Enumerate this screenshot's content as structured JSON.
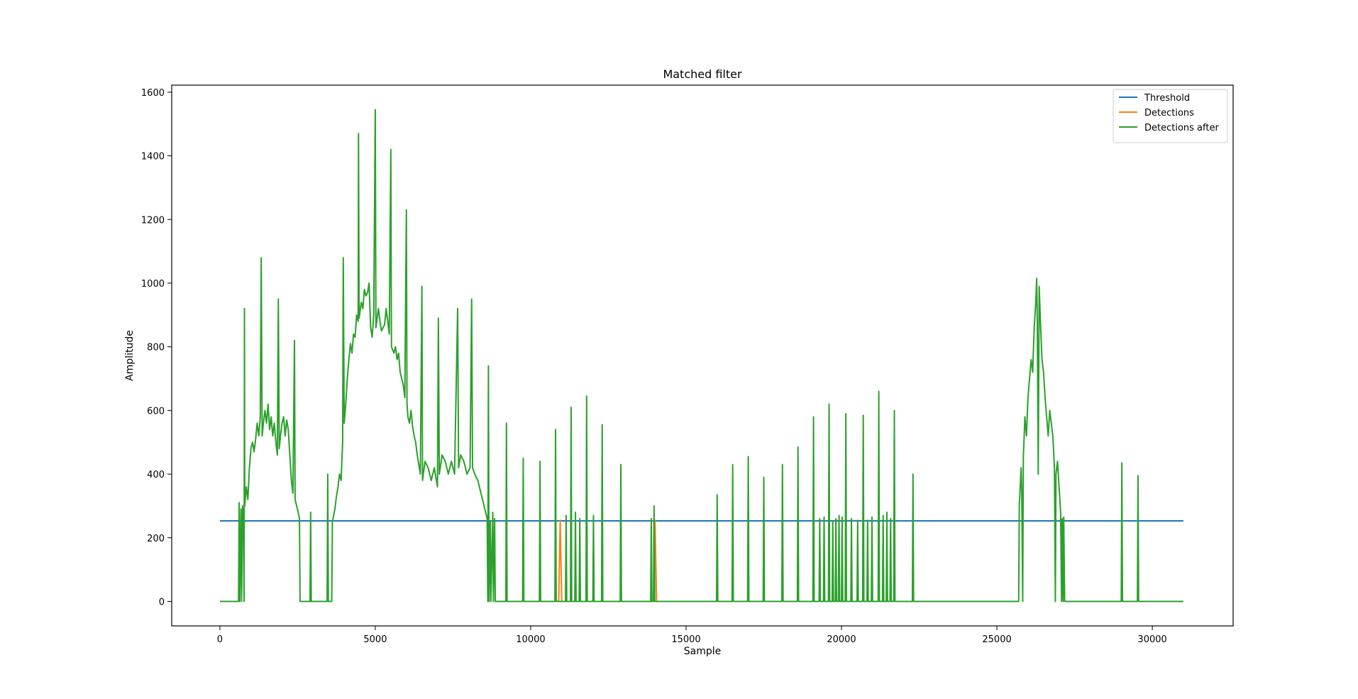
{
  "chart_data": {
    "type": "line",
    "title": "Matched filter",
    "xlabel": "Sample",
    "ylabel": "Amplitude",
    "xlim": [
      -1550,
      32600
    ],
    "ylim": [
      -77,
      1622
    ],
    "x_ticks": [
      0,
      5000,
      10000,
      15000,
      20000,
      25000,
      30000
    ],
    "y_ticks": [
      0,
      200,
      400,
      600,
      800,
      1000,
      1200,
      1400,
      1600
    ],
    "grid": false,
    "legend_position": "top-right",
    "series": [
      {
        "name": "Threshold",
        "color": "#1f77b4",
        "points": [
          [
            0,
            253
          ],
          [
            31000,
            253
          ]
        ]
      },
      {
        "name": "Detections",
        "color": "#ff7f0e",
        "points": [
          [
            10900,
            0
          ],
          [
            10950,
            255
          ],
          [
            11000,
            0
          ],
          [
            13950,
            0
          ],
          [
            14000,
            255
          ],
          [
            14050,
            0
          ]
        ]
      },
      {
        "name": "Detections after",
        "color": "#2ca02c",
        "points": [
          [
            0,
            0
          ],
          [
            600,
            0
          ],
          [
            620,
            310
          ],
          [
            640,
            0
          ],
          [
            680,
            290
          ],
          [
            700,
            0
          ],
          [
            730,
            300
          ],
          [
            760,
            260
          ],
          [
            780,
            0
          ],
          [
            790,
            920
          ],
          [
            800,
            300
          ],
          [
            850,
            360
          ],
          [
            900,
            320
          ],
          [
            950,
            420
          ],
          [
            1000,
            480
          ],
          [
            1050,
            500
          ],
          [
            1100,
            470
          ],
          [
            1150,
            510
          ],
          [
            1200,
            560
          ],
          [
            1250,
            520
          ],
          [
            1300,
            580
          ],
          [
            1330,
            1080
          ],
          [
            1360,
            520
          ],
          [
            1400,
            560
          ],
          [
            1450,
            600
          ],
          [
            1500,
            560
          ],
          [
            1550,
            620
          ],
          [
            1600,
            540
          ],
          [
            1650,
            580
          ],
          [
            1700,
            520
          ],
          [
            1750,
            560
          ],
          [
            1800,
            500
          ],
          [
            1850,
            460
          ],
          [
            1880,
            950
          ],
          [
            1910,
            480
          ],
          [
            1950,
            520
          ],
          [
            2000,
            560
          ],
          [
            2050,
            580
          ],
          [
            2100,
            520
          ],
          [
            2150,
            570
          ],
          [
            2200,
            540
          ],
          [
            2250,
            460
          ],
          [
            2300,
            380
          ],
          [
            2350,
            340
          ],
          [
            2400,
            820
          ],
          [
            2420,
            320
          ],
          [
            2470,
            300
          ],
          [
            2520,
            280
          ],
          [
            2560,
            260
          ],
          [
            2580,
            0
          ],
          [
            2900,
            0
          ],
          [
            2920,
            280
          ],
          [
            2940,
            0
          ],
          [
            3450,
            0
          ],
          [
            3470,
            400
          ],
          [
            3490,
            0
          ],
          [
            3600,
            0
          ],
          [
            3620,
            250
          ],
          [
            3700,
            290
          ],
          [
            3750,
            330
          ],
          [
            3800,
            360
          ],
          [
            3850,
            400
          ],
          [
            3900,
            380
          ],
          [
            3950,
            500
          ],
          [
            3970,
            1080
          ],
          [
            4000,
            560
          ],
          [
            4050,
            620
          ],
          [
            4100,
            700
          ],
          [
            4150,
            760
          ],
          [
            4200,
            810
          ],
          [
            4250,
            780
          ],
          [
            4300,
            840
          ],
          [
            4350,
            830
          ],
          [
            4400,
            900
          ],
          [
            4450,
            880
          ],
          [
            4460,
            1470
          ],
          [
            4480,
            890
          ],
          [
            4550,
            940
          ],
          [
            4600,
            920
          ],
          [
            4650,
            980
          ],
          [
            4700,
            960
          ],
          [
            4750,
            970
          ],
          [
            4800,
            1000
          ],
          [
            4850,
            860
          ],
          [
            4900,
            830
          ],
          [
            4950,
            900
          ],
          [
            5000,
            1545
          ],
          [
            5020,
            860
          ],
          [
            5100,
            920
          ],
          [
            5150,
            880
          ],
          [
            5200,
            850
          ],
          [
            5300,
            870
          ],
          [
            5350,
            920
          ],
          [
            5400,
            880
          ],
          [
            5450,
            840
          ],
          [
            5500,
            1420
          ],
          [
            5520,
            800
          ],
          [
            5600,
            780
          ],
          [
            5650,
            800
          ],
          [
            5700,
            760
          ],
          [
            5750,
            780
          ],
          [
            5800,
            720
          ],
          [
            5850,
            700
          ],
          [
            5900,
            680
          ],
          [
            5950,
            640
          ],
          [
            6000,
            1230
          ],
          [
            6020,
            620
          ],
          [
            6050,
            580
          ],
          [
            6100,
            560
          ],
          [
            6150,
            600
          ],
          [
            6200,
            550
          ],
          [
            6250,
            520
          ],
          [
            6300,
            500
          ],
          [
            6350,
            460
          ],
          [
            6450,
            400
          ],
          [
            6500,
            990
          ],
          [
            6520,
            380
          ],
          [
            6600,
            440
          ],
          [
            6700,
            420
          ],
          [
            6800,
            380
          ],
          [
            6900,
            420
          ],
          [
            7000,
            360
          ],
          [
            7030,
            890
          ],
          [
            7060,
            400
          ],
          [
            7150,
            460
          ],
          [
            7250,
            440
          ],
          [
            7350,
            400
          ],
          [
            7450,
            440
          ],
          [
            7550,
            400
          ],
          [
            7650,
            920
          ],
          [
            7680,
            420
          ],
          [
            7750,
            460
          ],
          [
            7850,
            440
          ],
          [
            7950,
            400
          ],
          [
            8050,
            420
          ],
          [
            8100,
            950
          ],
          [
            8130,
            420
          ],
          [
            8200,
            400
          ],
          [
            8300,
            380
          ],
          [
            8400,
            340
          ],
          [
            8500,
            300
          ],
          [
            8600,
            260
          ],
          [
            8620,
            0
          ],
          [
            8640,
            740
          ],
          [
            8660,
            0
          ],
          [
            8700,
            250
          ],
          [
            8720,
            0
          ],
          [
            8780,
            280
          ],
          [
            8800,
            0
          ],
          [
            8840,
            260
          ],
          [
            8860,
            0
          ],
          [
            9200,
            0
          ],
          [
            9220,
            560
          ],
          [
            9240,
            0
          ],
          [
            9740,
            0
          ],
          [
            9760,
            450
          ],
          [
            9780,
            0
          ],
          [
            10280,
            0
          ],
          [
            10300,
            440
          ],
          [
            10320,
            0
          ],
          [
            10780,
            0
          ],
          [
            10800,
            540
          ],
          [
            10820,
            0
          ],
          [
            11120,
            0
          ],
          [
            11140,
            270
          ],
          [
            11160,
            0
          ],
          [
            11280,
            0
          ],
          [
            11300,
            610
          ],
          [
            11320,
            0
          ],
          [
            11420,
            0
          ],
          [
            11440,
            280
          ],
          [
            11460,
            0
          ],
          [
            11560,
            0
          ],
          [
            11580,
            260
          ],
          [
            11600,
            0
          ],
          [
            11780,
            0
          ],
          [
            11800,
            645
          ],
          [
            11820,
            0
          ],
          [
            12000,
            0
          ],
          [
            12020,
            270
          ],
          [
            12040,
            0
          ],
          [
            12280,
            0
          ],
          [
            12300,
            555
          ],
          [
            12320,
            0
          ],
          [
            12880,
            0
          ],
          [
            12900,
            430
          ],
          [
            12920,
            0
          ],
          [
            13860,
            0
          ],
          [
            13880,
            260
          ],
          [
            13900,
            0
          ],
          [
            13950,
            0
          ],
          [
            13970,
            300
          ],
          [
            13990,
            0
          ],
          [
            15980,
            0
          ],
          [
            16000,
            335
          ],
          [
            16020,
            0
          ],
          [
            16480,
            0
          ],
          [
            16500,
            430
          ],
          [
            16520,
            0
          ],
          [
            16980,
            0
          ],
          [
            17000,
            455
          ],
          [
            17020,
            0
          ],
          [
            17480,
            0
          ],
          [
            17500,
            390
          ],
          [
            17520,
            0
          ],
          [
            18080,
            0
          ],
          [
            18100,
            430
          ],
          [
            18120,
            0
          ],
          [
            18580,
            0
          ],
          [
            18600,
            485
          ],
          [
            18620,
            0
          ],
          [
            19080,
            0
          ],
          [
            19100,
            580
          ],
          [
            19120,
            0
          ],
          [
            19280,
            0
          ],
          [
            19300,
            260
          ],
          [
            19320,
            0
          ],
          [
            19420,
            0
          ],
          [
            19440,
            265
          ],
          [
            19460,
            0
          ],
          [
            19580,
            0
          ],
          [
            19600,
            620
          ],
          [
            19620,
            0
          ],
          [
            19700,
            0
          ],
          [
            19720,
            250
          ],
          [
            19740,
            0
          ],
          [
            19800,
            0
          ],
          [
            19820,
            260
          ],
          [
            19840,
            0
          ],
          [
            19900,
            0
          ],
          [
            19920,
            270
          ],
          [
            19940,
            0
          ],
          [
            20000,
            0
          ],
          [
            20020,
            265
          ],
          [
            20040,
            0
          ],
          [
            20120,
            0
          ],
          [
            20140,
            590
          ],
          [
            20160,
            0
          ],
          [
            20300,
            0
          ],
          [
            20320,
            260
          ],
          [
            20340,
            0
          ],
          [
            20500,
            0
          ],
          [
            20520,
            255
          ],
          [
            20540,
            0
          ],
          [
            20680,
            0
          ],
          [
            20700,
            585
          ],
          [
            20720,
            0
          ],
          [
            20820,
            0
          ],
          [
            20840,
            255
          ],
          [
            20860,
            0
          ],
          [
            20960,
            0
          ],
          [
            20980,
            265
          ],
          [
            21000,
            0
          ],
          [
            21180,
            0
          ],
          [
            21200,
            660
          ],
          [
            21220,
            0
          ],
          [
            21320,
            0
          ],
          [
            21340,
            270
          ],
          [
            21360,
            0
          ],
          [
            21440,
            0
          ],
          [
            21460,
            280
          ],
          [
            21480,
            0
          ],
          [
            21560,
            0
          ],
          [
            21580,
            260
          ],
          [
            21600,
            0
          ],
          [
            21680,
            0
          ],
          [
            21700,
            600
          ],
          [
            21720,
            0
          ],
          [
            22280,
            0
          ],
          [
            22300,
            400
          ],
          [
            22320,
            0
          ],
          [
            25700,
            0
          ],
          [
            25720,
            300
          ],
          [
            25780,
            420
          ],
          [
            25800,
            340
          ],
          [
            25830,
            0
          ],
          [
            25850,
            450
          ],
          [
            25900,
            580
          ],
          [
            25950,
            520
          ],
          [
            26000,
            640
          ],
          [
            26050,
            700
          ],
          [
            26100,
            760
          ],
          [
            26150,
            720
          ],
          [
            26200,
            860
          ],
          [
            26250,
            940
          ],
          [
            26280,
            1015
          ],
          [
            26300,
            870
          ],
          [
            26330,
            400
          ],
          [
            26360,
            990
          ],
          [
            26400,
            880
          ],
          [
            26450,
            760
          ],
          [
            26500,
            720
          ],
          [
            26550,
            640
          ],
          [
            26600,
            580
          ],
          [
            26650,
            520
          ],
          [
            26700,
            600
          ],
          [
            26750,
            560
          ],
          [
            26800,
            520
          ],
          [
            26850,
            420
          ],
          [
            26880,
            0
          ],
          [
            26900,
            400
          ],
          [
            26950,
            440
          ],
          [
            27000,
            360
          ],
          [
            27050,
            280
          ],
          [
            27080,
            0
          ],
          [
            27100,
            260
          ],
          [
            27130,
            0
          ],
          [
            27150,
            265
          ],
          [
            27180,
            0
          ],
          [
            29000,
            0
          ],
          [
            29020,
            435
          ],
          [
            29040,
            0
          ],
          [
            29520,
            0
          ],
          [
            29540,
            395
          ],
          [
            29560,
            0
          ],
          [
            31000,
            0
          ]
        ]
      }
    ]
  }
}
